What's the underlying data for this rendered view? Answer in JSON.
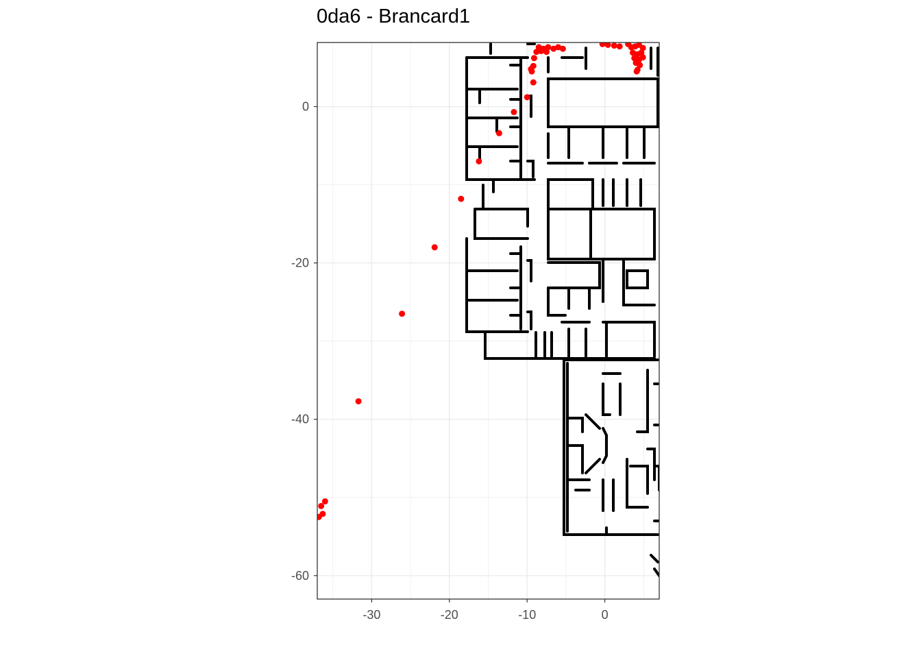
{
  "chart_data": {
    "type": "scatter",
    "title": "0da6 - Brancard1",
    "xlabel": "",
    "ylabel": "",
    "xlim": [
      -37,
      7
    ],
    "ylim": [
      -63,
      8.2
    ],
    "x_ticks": [
      -30,
      -20,
      -10,
      0
    ],
    "x_tick_labels": [
      "-30",
      "-20",
      "-10",
      "0"
    ],
    "y_ticks": [
      0,
      -20,
      -40,
      -60
    ],
    "y_tick_labels": [
      "0",
      "-20",
      "-40",
      "-60"
    ],
    "grid": true,
    "background_layer": "floor-plan",
    "colors": {
      "points": "#ff0000",
      "walls": "#000000",
      "grid": "#ebebeb",
      "panel_border": "#333333",
      "tick_text": "#4d4d4d"
    },
    "series": [
      {
        "points": [
          [
            -8.5,
            7.6
          ],
          [
            -7.9,
            7.4
          ],
          [
            -7.3,
            7.6
          ],
          [
            -6.6,
            7.4
          ],
          [
            -6.0,
            7.6
          ],
          [
            -5.4,
            7.4
          ],
          [
            -8.8,
            7.0
          ],
          [
            -8.2,
            7.1
          ],
          [
            -7.5,
            7.0
          ],
          [
            -9.1,
            6.2
          ],
          [
            -9.2,
            5.2
          ],
          [
            -9.4,
            4.5
          ],
          [
            -9.5,
            4.8
          ],
          [
            -0.3,
            8.0
          ],
          [
            0.4,
            7.9
          ],
          [
            1.2,
            7.8
          ],
          [
            1.9,
            7.7
          ],
          [
            3.0,
            8.0
          ],
          [
            3.4,
            7.6
          ],
          [
            3.9,
            7.7
          ],
          [
            4.4,
            7.9
          ],
          [
            4.9,
            7.5
          ],
          [
            3.6,
            6.9
          ],
          [
            4.2,
            6.7
          ],
          [
            4.7,
            6.9
          ],
          [
            3.8,
            6.2
          ],
          [
            4.4,
            6.0
          ],
          [
            4.9,
            6.3
          ],
          [
            4.0,
            5.6
          ],
          [
            4.5,
            5.3
          ],
          [
            4.2,
            4.7
          ],
          [
            4.1,
            4.5
          ],
          [
            -9.2,
            3.1
          ],
          [
            -10.0,
            1.2
          ],
          [
            -11.7,
            -0.7
          ],
          [
            -13.6,
            -3.4
          ],
          [
            -16.2,
            -7.0
          ],
          [
            -18.5,
            -11.8
          ],
          [
            -21.9,
            -18.0
          ],
          [
            -26.1,
            -26.5
          ],
          [
            -31.7,
            -37.7
          ],
          [
            -36.0,
            -50.5
          ],
          [
            -36.5,
            -51.1
          ],
          [
            -36.3,
            -52.1
          ],
          [
            -36.8,
            -52.5
          ]
        ]
      }
    ]
  }
}
